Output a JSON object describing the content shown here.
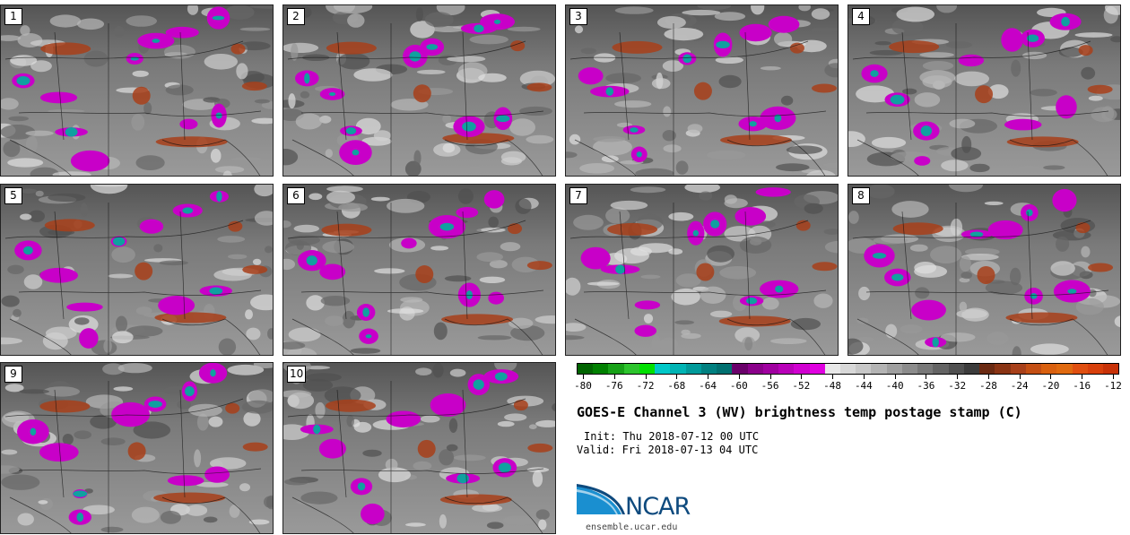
{
  "panels": [
    {
      "label": "1"
    },
    {
      "label": "2"
    },
    {
      "label": "3"
    },
    {
      "label": "4"
    },
    {
      "label": "5"
    },
    {
      "label": "6"
    },
    {
      "label": "7"
    },
    {
      "label": "8"
    },
    {
      "label": "9"
    },
    {
      "label": "10"
    }
  ],
  "colorbar": {
    "tick_labels": [
      "-80",
      "-76",
      "-72",
      "-68",
      "-64",
      "-60",
      "-56",
      "-52",
      "-48",
      "-44",
      "-40",
      "-36",
      "-32",
      "-28",
      "-24",
      "-20",
      "-16",
      "-12"
    ],
    "colors": [
      "#006400",
      "#008000",
      "#17a117",
      "#2dc42d",
      "#00e000",
      "#00c8c8",
      "#00b4b4",
      "#009a9a",
      "#008080",
      "#007070",
      "#6a006a",
      "#8a008a",
      "#a000a0",
      "#b800b8",
      "#d000d0",
      "#e000e0",
      "#e8e8e8",
      "#d8d8d8",
      "#c8c8c8",
      "#b4b4b4",
      "#a0a0a0",
      "#8c8c8c",
      "#787878",
      "#646464",
      "#505050",
      "#3c3c3c",
      "#6b2a12",
      "#8a3414",
      "#a8401a",
      "#c44f14",
      "#d9600f",
      "#e06a10",
      "#e04f10",
      "#d8400c",
      "#c83208"
    ]
  },
  "title": "GOES-E Channel 3 (WV) brightness temp postage stamp (C)",
  "init_line": "Init: Thu 2018-07-12 00 UTC",
  "valid_line": "Valid: Fri 2018-07-13 04 UTC",
  "logo": {
    "text": "NCAR",
    "color": "#0e4a7e"
  },
  "website": "ensemble.ucar.edu"
}
